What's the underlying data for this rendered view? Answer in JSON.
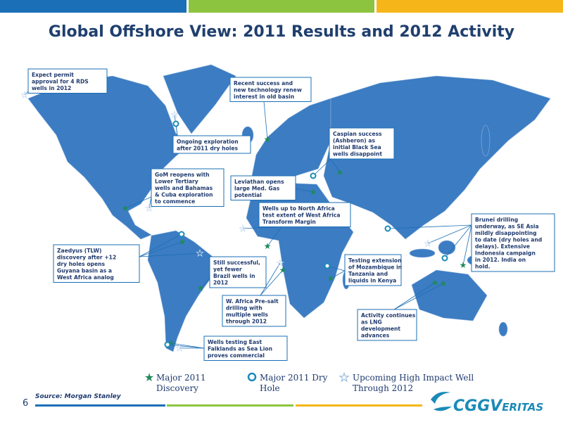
{
  "title": "Global Offshore View: 2011 Results and 2012 Activity",
  "callouts": [
    {
      "lines": [
        "Expect permit",
        "approval for 4 RDS",
        "wells in 2012"
      ]
    },
    {
      "lines": [
        "Recent success and",
        "new technology renew",
        "interest in old basin"
      ]
    },
    {
      "lines": [
        "Ongoing exploration",
        "after  2011 dry holes"
      ]
    },
    {
      "lines": [
        "Caspian success",
        "(Ashberon) as",
        "initial Black Sea",
        "wells disappoint"
      ]
    },
    {
      "lines": [
        "GoM reopens with",
        "Lower Tertiary",
        "wells and Bahamas",
        "& Cuba exploration",
        "to commence"
      ]
    },
    {
      "lines": [
        "Leviathan opens",
        "large Med. Gas",
        "potential"
      ]
    },
    {
      "lines": [
        "Wells  up to North Africa",
        "test extent of West Africa",
        "Transform Margin"
      ]
    },
    {
      "lines": [
        "Brunei drilling",
        "underway, as SE Asia",
        "mildly disappointing",
        "to date (dry holes and",
        "delays).  Extensive",
        "Indonesia campaign",
        "in 2012.  India on",
        "hold."
      ]
    },
    {
      "lines": [
        "Zaedyus (TLW)",
        "discovery after +12",
        "dry holes opens",
        "Guyana basin as a",
        "West Africa analog"
      ]
    },
    {
      "lines": [
        "Still successful,",
        "yet fewer",
        "Brazil wells in",
        "2012"
      ]
    },
    {
      "lines": [
        "Testing extension",
        "of Mozambique in",
        "Tanzania and",
        "liquids in Kenya"
      ]
    },
    {
      "lines": [
        "W. Africa Pre-salt",
        "drilling with",
        "multiple wells",
        "through 2012"
      ]
    },
    {
      "lines": [
        "Activity continues",
        "as LNG",
        "development",
        "advances"
      ]
    },
    {
      "lines": [
        "Wells testing East",
        "Falklands as Sea Lion",
        "proves  commercial"
      ]
    }
  ],
  "legend": [
    {
      "lines": [
        "Major 2011",
        "Discovery"
      ]
    },
    {
      "lines": [
        "Major 2011 Dry",
        "Hole"
      ]
    },
    {
      "lines": [
        "Upcoming High Impact Well",
        "Through 2012"
      ]
    }
  ],
  "source": "Source: Morgan Stanley",
  "page_number": "6",
  "logo": "CGGVeritas"
}
